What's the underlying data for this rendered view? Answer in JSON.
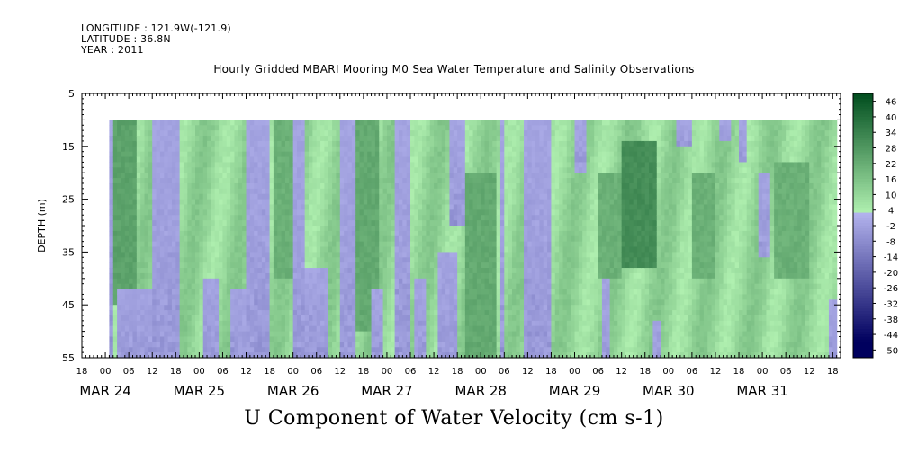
{
  "header": {
    "longitude": "LONGITUDE : 121.9W(-121.9)",
    "latitude": "LATITUDE : 36.8N",
    "year": "YEAR : 2011"
  },
  "title": "Hourly Gridded MBARI Mooring M0 Sea Water Temperature and Salinity Observations",
  "footer_title": "U Component of Water Velocity (cm s-1)",
  "chart_data": {
    "type": "heatmap",
    "title": "Hourly Gridded MBARI Mooring M0 Sea Water Temperature and Salinity Observations",
    "variable": "U Component of Water Velocity (cm s-1)",
    "ylabel": "DEPTH (m)",
    "y_ticks": [
      5,
      15,
      25,
      35,
      45,
      55
    ],
    "ylim": [
      55,
      5
    ],
    "y_inverted": true,
    "data_depth_range": [
      10,
      55
    ],
    "xlim": [
      "2011-03-23 18:00",
      "2011-03-31 20:00"
    ],
    "x_hour_ticks": [
      {
        "t": "2011-03-23 18:00",
        "label": "18"
      },
      {
        "t": "2011-03-24 00:00",
        "label": "00"
      },
      {
        "t": "2011-03-24 06:00",
        "label": "06"
      },
      {
        "t": "2011-03-24 12:00",
        "label": "12"
      },
      {
        "t": "2011-03-24 18:00",
        "label": "18"
      },
      {
        "t": "2011-03-25 00:00",
        "label": "00"
      },
      {
        "t": "2011-03-25 06:00",
        "label": "06"
      },
      {
        "t": "2011-03-25 12:00",
        "label": "12"
      },
      {
        "t": "2011-03-25 18:00",
        "label": "18"
      },
      {
        "t": "2011-03-26 00:00",
        "label": "00"
      },
      {
        "t": "2011-03-26 06:00",
        "label": "06"
      },
      {
        "t": "2011-03-26 12:00",
        "label": "12"
      },
      {
        "t": "2011-03-26 18:00",
        "label": "18"
      },
      {
        "t": "2011-03-27 00:00",
        "label": "00"
      },
      {
        "t": "2011-03-27 06:00",
        "label": "06"
      },
      {
        "t": "2011-03-27 12:00",
        "label": "12"
      },
      {
        "t": "2011-03-27 18:00",
        "label": "18"
      },
      {
        "t": "2011-03-28 00:00",
        "label": "00"
      },
      {
        "t": "2011-03-28 06:00",
        "label": "06"
      },
      {
        "t": "2011-03-28 12:00",
        "label": "12"
      },
      {
        "t": "2011-03-28 18:00",
        "label": "18"
      },
      {
        "t": "2011-03-29 00:00",
        "label": "00"
      },
      {
        "t": "2011-03-29 06:00",
        "label": "06"
      },
      {
        "t": "2011-03-29 12:00",
        "label": "12"
      },
      {
        "t": "2011-03-29 18:00",
        "label": "18"
      },
      {
        "t": "2011-03-30 00:00",
        "label": "00"
      },
      {
        "t": "2011-03-30 06:00",
        "label": "06"
      },
      {
        "t": "2011-03-30 12:00",
        "label": "12"
      },
      {
        "t": "2011-03-30 18:00",
        "label": "18"
      },
      {
        "t": "2011-03-31 00:00",
        "label": "00"
      },
      {
        "t": "2011-03-31 06:00",
        "label": "06"
      },
      {
        "t": "2011-03-31 12:00",
        "label": "12"
      },
      {
        "t": "2011-03-31 18:00",
        "label": "18"
      }
    ],
    "x_date_labels": [
      {
        "t": "2011-03-24 00:00",
        "label": "MAR 24"
      },
      {
        "t": "2011-03-25 00:00",
        "label": "MAR 25"
      },
      {
        "t": "2011-03-26 00:00",
        "label": "MAR 26"
      },
      {
        "t": "2011-03-27 00:00",
        "label": "MAR 27"
      },
      {
        "t": "2011-03-28 00:00",
        "label": "MAR 28"
      },
      {
        "t": "2011-03-29 00:00",
        "label": "MAR 29"
      },
      {
        "t": "2011-03-30 00:00",
        "label": "MAR 30"
      },
      {
        "t": "2011-03-31 00:00",
        "label": "MAR 31"
      }
    ],
    "colorbar": {
      "levels": [
        -50,
        -44,
        -38,
        -32,
        -26,
        -20,
        -14,
        -8,
        -2,
        4,
        10,
        16,
        22,
        28,
        34,
        40,
        46
      ],
      "labels": [
        "46",
        "40",
        "34",
        "28",
        "22",
        "16",
        "10",
        "4",
        "-2",
        "-8",
        "-14",
        "-20",
        "-26",
        "-32",
        "-38",
        "-44",
        "-50"
      ],
      "color_low": "#00005e",
      "color_zero_neg": "#b4b4ee",
      "color_zero_pos": "#b0f0b0",
      "color_high": "#004d1e"
    },
    "data_start": "2011-03-24 01:00",
    "data_end": "2011-03-31 19:00",
    "negative_bands": [
      {
        "start": "2011-03-24 01:00",
        "end": "2011-03-24 02:00",
        "depth_from": 10,
        "depth_to": 55
      },
      {
        "start": "2011-03-24 03:00",
        "end": "2011-03-24 12:00",
        "depth_from": 42,
        "depth_to": 55
      },
      {
        "start": "2011-03-24 12:00",
        "end": "2011-03-24 19:00",
        "depth_from": 10,
        "depth_to": 55
      },
      {
        "start": "2011-03-25 01:00",
        "end": "2011-03-25 05:00",
        "depth_from": 40,
        "depth_to": 55
      },
      {
        "start": "2011-03-25 08:00",
        "end": "2011-03-25 12:00",
        "depth_from": 42,
        "depth_to": 55
      },
      {
        "start": "2011-03-25 12:00",
        "end": "2011-03-25 18:00",
        "depth_from": 10,
        "depth_to": 55
      },
      {
        "start": "2011-03-26 00:00",
        "end": "2011-03-26 03:00",
        "depth_from": 10,
        "depth_to": 55
      },
      {
        "start": "2011-03-26 03:00",
        "end": "2011-03-26 09:00",
        "depth_from": 38,
        "depth_to": 55
      },
      {
        "start": "2011-03-26 12:00",
        "end": "2011-03-26 16:00",
        "depth_from": 10,
        "depth_to": 55
      },
      {
        "start": "2011-03-26 20:00",
        "end": "2011-03-26 23:00",
        "depth_from": 42,
        "depth_to": 55
      },
      {
        "start": "2011-03-27 02:00",
        "end": "2011-03-27 06:00",
        "depth_from": 10,
        "depth_to": 55
      },
      {
        "start": "2011-03-27 07:00",
        "end": "2011-03-27 10:00",
        "depth_from": 40,
        "depth_to": 55
      },
      {
        "start": "2011-03-27 13:00",
        "end": "2011-03-27 18:00",
        "depth_from": 35,
        "depth_to": 55
      },
      {
        "start": "2011-03-27 16:00",
        "end": "2011-03-27 20:00",
        "depth_from": 10,
        "depth_to": 30
      },
      {
        "start": "2011-03-28 05:00",
        "end": "2011-03-28 06:00",
        "depth_from": 10,
        "depth_to": 55
      },
      {
        "start": "2011-03-28 11:00",
        "end": "2011-03-28 18:00",
        "depth_from": 10,
        "depth_to": 55
      },
      {
        "start": "2011-03-29 00:00",
        "end": "2011-03-29 03:00",
        "depth_from": 10,
        "depth_to": 20
      },
      {
        "start": "2011-03-29 07:00",
        "end": "2011-03-29 09:00",
        "depth_from": 40,
        "depth_to": 55
      },
      {
        "start": "2011-03-29 20:00",
        "end": "2011-03-29 22:00",
        "depth_from": 48,
        "depth_to": 55
      },
      {
        "start": "2011-03-30 02:00",
        "end": "2011-03-30 06:00",
        "depth_from": 10,
        "depth_to": 15
      },
      {
        "start": "2011-03-30 13:00",
        "end": "2011-03-30 16:00",
        "depth_from": 10,
        "depth_to": 14
      },
      {
        "start": "2011-03-30 18:00",
        "end": "2011-03-30 20:00",
        "depth_from": 10,
        "depth_to": 18
      },
      {
        "start": "2011-03-30 23:00",
        "end": "2011-03-31 02:00",
        "depth_from": 20,
        "depth_to": 36
      },
      {
        "start": "2011-03-31 17:00",
        "end": "2011-03-31 19:00",
        "depth_from": 44,
        "depth_to": 55
      }
    ],
    "strong_positive_zones": [
      {
        "start": "2011-03-24 02:00",
        "end": "2011-03-24 08:00",
        "depth_from": 10,
        "depth_to": 45,
        "value": 22
      },
      {
        "start": "2011-03-25 19:00",
        "end": "2011-03-26 00:00",
        "depth_from": 10,
        "depth_to": 40,
        "value": 18
      },
      {
        "start": "2011-03-26 16:00",
        "end": "2011-03-26 22:00",
        "depth_from": 10,
        "depth_to": 50,
        "value": 20
      },
      {
        "start": "2011-03-27 20:00",
        "end": "2011-03-28 04:00",
        "depth_from": 20,
        "depth_to": 55,
        "value": 20
      },
      {
        "start": "2011-03-29 12:00",
        "end": "2011-03-29 21:00",
        "depth_from": 14,
        "depth_to": 38,
        "value": 28
      },
      {
        "start": "2011-03-29 06:00",
        "end": "2011-03-29 12:00",
        "depth_from": 20,
        "depth_to": 40,
        "value": 18
      },
      {
        "start": "2011-03-30 06:00",
        "end": "2011-03-30 12:00",
        "depth_from": 20,
        "depth_to": 40,
        "value": 18
      },
      {
        "start": "2011-03-31 03:00",
        "end": "2011-03-31 12:00",
        "depth_from": 18,
        "depth_to": 40,
        "value": 18
      }
    ]
  }
}
